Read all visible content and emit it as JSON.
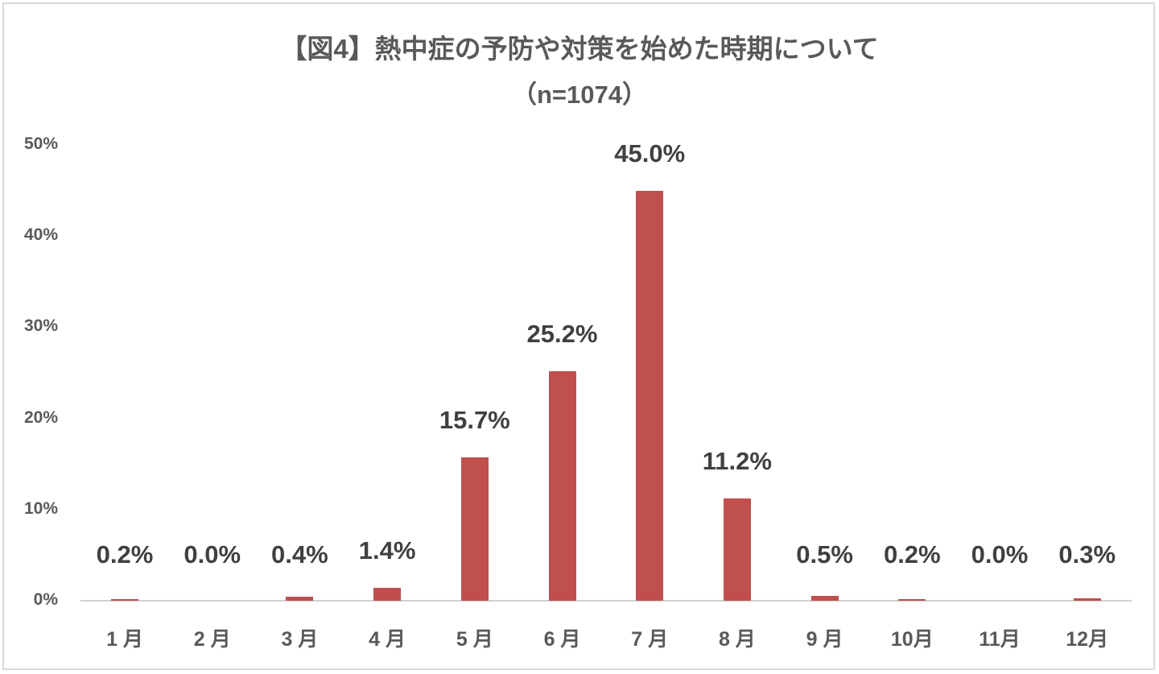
{
  "chart_data": {
    "type": "bar",
    "title": "【図4】熱中症の予防や対策を始めた時期について",
    "subtitle": "（n=1074）",
    "categories": [
      "1月",
      "2月",
      "3月",
      "4月",
      "5月",
      "6月",
      "7月",
      "8月",
      "9月",
      "10月",
      "11月",
      "12月"
    ],
    "category_labels": [
      "1 月",
      "2 月",
      "3 月",
      "4 月",
      "5 月",
      "6 月",
      "7 月",
      "8 月",
      "9 月",
      "10月",
      "11月",
      "12月"
    ],
    "values": [
      0.2,
      0.0,
      0.4,
      1.4,
      15.7,
      25.2,
      45.0,
      11.2,
      0.5,
      0.2,
      0.0,
      0.3
    ],
    "value_labels": [
      "0.2%",
      "0.0%",
      "0.4%",
      "1.4%",
      "15.7%",
      "25.2%",
      "45.0%",
      "11.2%",
      "0.5%",
      "0.2%",
      "0.0%",
      "0.3%"
    ],
    "xlabel": "",
    "ylabel": "",
    "ylim": [
      0,
      50
    ],
    "yticks": [
      "0%",
      "10%",
      "20%",
      "30%",
      "40%",
      "50%"
    ],
    "grid": false,
    "legend": "none",
    "bar_color": "#c0504d"
  }
}
